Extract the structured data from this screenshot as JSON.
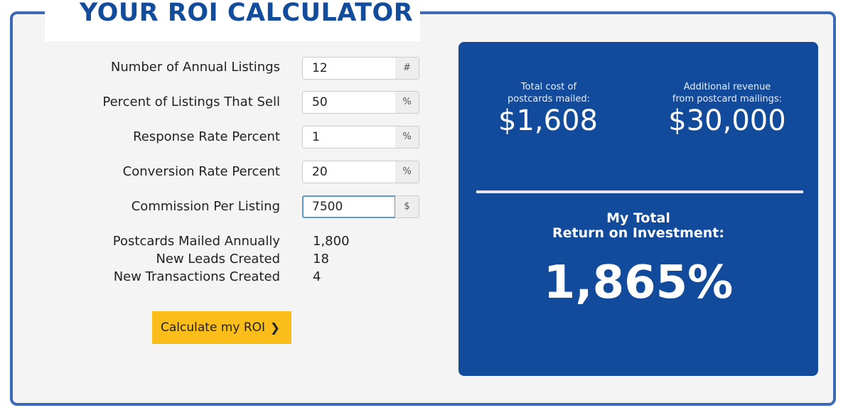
{
  "header": {
    "title": "YOUR ROI CALCULATOR"
  },
  "fields": [
    {
      "label": "Number of Annual Listings",
      "value": "12",
      "unit": "#"
    },
    {
      "label": "Percent of Listings That Sell",
      "value": "50",
      "unit": "%"
    },
    {
      "label": "Response Rate Percent",
      "value": "1",
      "unit": "%"
    },
    {
      "label": "Conversion Rate Percent",
      "value": "20",
      "unit": "%"
    },
    {
      "label": "Commission Per Listing",
      "value": "7500",
      "unit": "$"
    }
  ],
  "stats": [
    {
      "label": "Postcards Mailed Annually",
      "value": "1,800"
    },
    {
      "label": "New Leads Created",
      "value": "18"
    },
    {
      "label": "New Transactions Created",
      "value": "4"
    }
  ],
  "button": {
    "label": "Calculate my ROI",
    "icon": "chevron-right-icon"
  },
  "results": {
    "cost_label_line1": "Total cost of",
    "cost_label_line2": "postcards mailed:",
    "cost_value": "$1,608",
    "revenue_label_line1": "Additional revenue",
    "revenue_label_line2": "from postcard mailings:",
    "revenue_value": "$30,000",
    "roi_label_line1": "My Total",
    "roi_label_line2": "Return on Investment:",
    "roi_value": "1,865%"
  },
  "colors": {
    "brand_blue": "#124b9c",
    "title_blue": "#134c9b",
    "button_yellow": "#fbbd1a",
    "frame_border": "#3d6ab8"
  }
}
